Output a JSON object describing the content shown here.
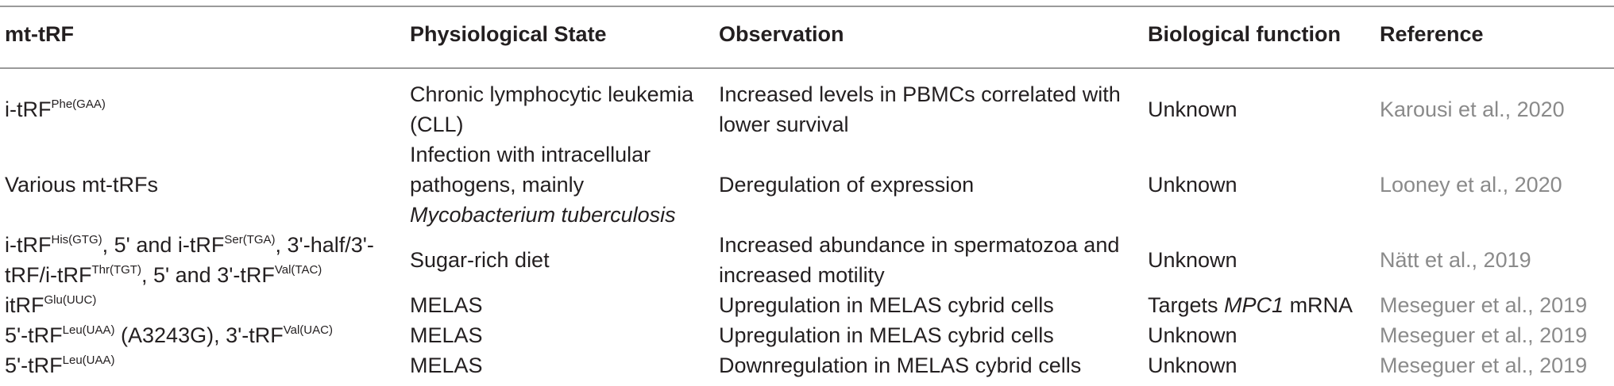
{
  "headers": {
    "c1": "mt-tRF",
    "c2": "Physiological State",
    "c3": "Observation",
    "c4": "Biological function",
    "c5": "Reference"
  },
  "rows": [
    {
      "mt_prefix": "i-tRF",
      "mt_sup": "Phe(GAA)",
      "state": "Chronic lymphocytic leukemia (CLL)",
      "observation": "Increased levels in PBMCs correlated with lower survival",
      "function": "Unknown",
      "reference": "Karousi et al., 2020"
    },
    {
      "mt": "Various mt-tRFs",
      "state_lead": "Infection with intracellular pathogens, mainly",
      "state_italic": "Mycobacterium tuberculosis",
      "observation": "Deregulation of expression",
      "function": "Unknown",
      "reference": "Looney et al., 2020"
    },
    {
      "mt_a": "i-tRF",
      "mt_a_sup": "His(GTG)",
      "mt_b": ", 5' and i-tRF",
      "mt_b_sup": "Ser(TGA)",
      "mt_c": ", 3'-half/3'-tRF/i-tRF",
      "mt_c_sup": "Thr(TGT)",
      "mt_d": ", 5' and 3'-tRF",
      "mt_d_sup": "Val(TAC)",
      "state": "Sugar-rich diet",
      "observation": "Increased abundance in spermatozoa and increased motility",
      "function": "Unknown",
      "reference": "Nätt et al., 2019"
    },
    {
      "mt_prefix": "itRF",
      "mt_sup": "Glu(UUC)",
      "state": "MELAS",
      "observation": "Upregulation in MELAS cybrid cells",
      "function_lead": "Targets ",
      "function_italic": "MPC1",
      "function_tail": " mRNA",
      "reference": "Meseguer et al., 2019"
    },
    {
      "mt_a": "5'-tRF",
      "mt_a_sup": "Leu(UAA)",
      "mt_b": " (A3243G), 3'-tRF",
      "mt_b_sup": "Val(UAC)",
      "state": "MELAS",
      "observation": "Upregulation in MELAS cybrid cells",
      "function": "Unknown",
      "reference": "Meseguer et al., 2019"
    },
    {
      "mt_prefix": "5'-tRF",
      "mt_sup": "Leu(UAA)",
      "state": "MELAS",
      "observation": "Downregulation in MELAS cybrid cells",
      "function": "Unknown",
      "reference": "Meseguer et al., 2019"
    }
  ]
}
